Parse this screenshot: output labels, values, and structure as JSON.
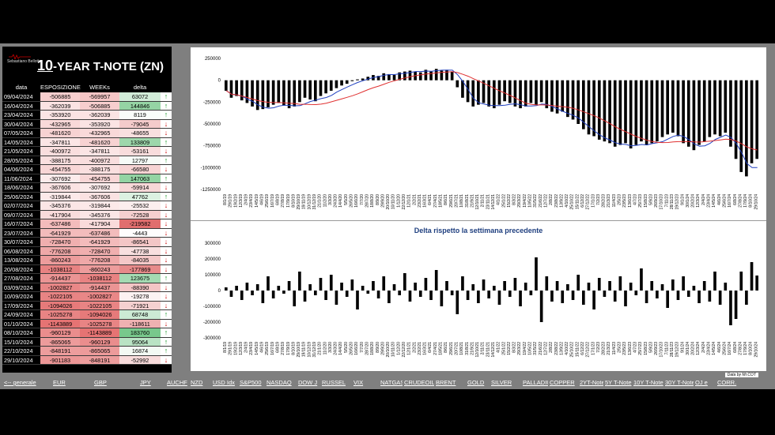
{
  "title": {
    "prefix": "10",
    "rest": "-YEAR T-NOTE (ZN)"
  },
  "logo_text": "Sebastiano Bellotto",
  "table": {
    "headers": [
      "data",
      "ESPOSIZIONE LS",
      "WEEKs",
      "delta"
    ],
    "rows": [
      [
        "09/04/2024",
        "-506885",
        "-569957",
        "63072",
        "up"
      ],
      [
        "16/04/2024",
        "-362039",
        "-506885",
        "144846",
        "up"
      ],
      [
        "23/04/2024",
        "-353920",
        "-362039",
        "8119",
        "up"
      ],
      [
        "30/04/2024",
        "-432965",
        "-353920",
        "-79045",
        "down"
      ],
      [
        "07/05/2024",
        "-481620",
        "-432965",
        "-48655",
        "down"
      ],
      [
        "14/05/2024",
        "-347811",
        "-481620",
        "133809",
        "up"
      ],
      [
        "21/05/2024",
        "-400972",
        "-347811",
        "-53161",
        "down"
      ],
      [
        "28/05/2024",
        "-388175",
        "-400972",
        "12797",
        "up"
      ],
      [
        "04/06/2024",
        "-454755",
        "-388175",
        "-66580",
        "down"
      ],
      [
        "11/06/2024",
        "-307692",
        "-454755",
        "147063",
        "up"
      ],
      [
        "18/06/2024",
        "-367606",
        "-307692",
        "-59914",
        "down"
      ],
      [
        "25/06/2024",
        "-319844",
        "-367606",
        "47762",
        "up"
      ],
      [
        "02/07/2024",
        "-345376",
        "-319844",
        "-25532",
        "down"
      ],
      [
        "09/07/2024",
        "-417904",
        "-345376",
        "-72528",
        "down"
      ],
      [
        "16/07/2024",
        "-637486",
        "-417904",
        "-219582",
        "down"
      ],
      [
        "23/07/2024",
        "-641929",
        "-637486",
        "-4443",
        "down"
      ],
      [
        "30/07/2024",
        "-728470",
        "-641929",
        "-86541",
        "down"
      ],
      [
        "06/08/2024",
        "-776208",
        "-728470",
        "-47738",
        "down"
      ],
      [
        "13/08/2024",
        "-860243",
        "-776208",
        "-84035",
        "down"
      ],
      [
        "20/08/2024",
        "-1038112",
        "-860243",
        "-177869",
        "down"
      ],
      [
        "27/08/2024",
        "-914437",
        "-1038112",
        "123675",
        "up"
      ],
      [
        "03/09/2024",
        "-1002827",
        "-914437",
        "-88390",
        "down"
      ],
      [
        "10/09/2024",
        "-1022105",
        "-1002827",
        "-19278",
        "down"
      ],
      [
        "17/09/2024",
        "-1094026",
        "-1022105",
        "-71921",
        "down"
      ],
      [
        "24/09/2024",
        "-1025278",
        "-1094026",
        "68748",
        "up"
      ],
      [
        "01/10/2024",
        "-1143889",
        "-1025278",
        "-118611",
        "down"
      ],
      [
        "08/10/2024",
        "-960129",
        "-1143889",
        "183760",
        "up"
      ],
      [
        "15/10/2024",
        "-865065",
        "-960129",
        "95064",
        "up"
      ],
      [
        "22/10/2024",
        "-848191",
        "-865065",
        "16874",
        "up"
      ],
      [
        "29/10/2024",
        "-901183",
        "-848191",
        "-52992",
        "down"
      ]
    ]
  },
  "colors": {
    "bar": "#000000",
    "line_fast": "#1f3fbf",
    "line_slow": "#e03030",
    "pos_delta": "#8fd19e",
    "neg_delta": "#e57373"
  },
  "chart_data": [
    {
      "type": "bar",
      "title": "",
      "yticks": [
        "250000",
        "0",
        "-250000",
        "-500000",
        "-750000",
        "-1000000",
        "-1250000"
      ],
      "ylim": [
        -1250000,
        250000
      ],
      "xticks": [
        "8/1/19",
        "29/1/19",
        "19/2/19",
        "12/3/19",
        "2/4/19",
        "23/4/19",
        "14/5/19",
        "4/6/19",
        "25/6/19",
        "16/7/19",
        "6/8/19",
        "27/8/19",
        "17/9/19",
        "8/10/19",
        "29/10/19",
        "19/11/19",
        "10/12/19",
        "31/12/19",
        "21/1/20",
        "11/2/20",
        "3/3/20",
        "24/3/20",
        "14/4/20",
        "5/5/20",
        "26/5/20",
        "16/6/20",
        "7/7/20",
        "28/7/20",
        "18/8/20",
        "8/9/20",
        "29/9/20",
        "20/10/20",
        "10/11/20",
        "1/12/20",
        "22/12/20",
        "12/1/21",
        "2/2/21",
        "23/2/21",
        "16/3/21",
        "6/4/21",
        "27/4/21",
        "18/5/21",
        "8/6/21",
        "29/6/21",
        "20/7/21",
        "10/8/21",
        "31/8/21",
        "21/9/21",
        "12/10/21",
        "2/11/21",
        "23/11/21",
        "14/12/21",
        "4/1/22",
        "25/1/22",
        "15/2/22",
        "8/3/22",
        "29/3/22",
        "19/4/22",
        "10/5/22",
        "31/5/22",
        "21/6/22",
        "12/7/22",
        "2/8/22",
        "23/8/22",
        "13/9/22",
        "4/10/22",
        "25/10/22",
        "15/11/22",
        "6/12/22",
        "27/12/22",
        "17/1/23",
        "7/2/23",
        "28/2/23",
        "21/3/23",
        "11/4/23",
        "2/5/23",
        "23/5/23",
        "13/6/23",
        "4/7/23",
        "25/7/23",
        "15/8/23",
        "5/9/23",
        "26/9/23",
        "17/10/23",
        "7/11/23",
        "28/11/23",
        "19/12/23",
        "9/1/24",
        "30/1/24",
        "20/2/24",
        "12/3/24",
        "2/4/24",
        "23/4/24",
        "14/5/24",
        "4/6/24",
        "25/6/24",
        "16/7/24",
        "6/8/24",
        "27/8/24",
        "17/9/24",
        "8/10/24",
        "29/10/24"
      ],
      "series": [
        {
          "type": "bar",
          "values": [
            -120000,
            -200000,
            -180000,
            -230000,
            -260000,
            -300000,
            -340000,
            -330000,
            -310000,
            -280000,
            -260000,
            -290000,
            -320000,
            -300000,
            -250000,
            -200000,
            -220000,
            -240000,
            -180000,
            -150000,
            -120000,
            -90000,
            -60000,
            -40000,
            -10000,
            10000,
            20000,
            40000,
            60000,
            50000,
            80000,
            70000,
            60000,
            90000,
            100000,
            110000,
            100000,
            90000,
            120000,
            100000,
            130000,
            110000,
            120000,
            100000,
            -80000,
            -200000,
            -250000,
            -300000,
            -280000,
            -260000,
            -300000,
            -320000,
            -280000,
            -240000,
            -260000,
            -300000,
            -320000,
            -300000,
            -260000,
            -280000,
            -250000,
            -320000,
            -360000,
            -380000,
            -360000,
            -420000,
            -450000,
            -500000,
            -560000,
            -620000,
            -640000,
            -680000,
            -700000,
            -720000,
            -760000,
            -740000,
            -720000,
            -780000,
            -740000,
            -700000,
            -740000,
            -720000,
            -700000,
            -650000,
            -620000,
            -600000,
            -640000,
            -720000,
            -760000,
            -800000,
            -740000,
            -700000,
            -650000,
            -620000,
            -640000,
            -600000,
            -760000,
            -900000,
            -1050000,
            -1100000,
            -950000,
            -900000
          ]
        }
      ]
    },
    {
      "type": "bar",
      "title": "Delta rispetto la settimana precedente",
      "yticks": [
        "300000",
        "200000",
        "100000",
        "0",
        "-100000",
        "-200000",
        "-300000"
      ],
      "ylim": [
        -300000,
        300000
      ],
      "series": [
        {
          "type": "bar",
          "values": [
            20000,
            -40000,
            30000,
            -60000,
            50000,
            -30000,
            40000,
            -80000,
            90000,
            -50000,
            30000,
            -20000,
            60000,
            -100000,
            120000,
            -70000,
            40000,
            -30000,
            80000,
            -60000,
            100000,
            -90000,
            50000,
            -40000,
            70000,
            -120000,
            30000,
            -20000,
            60000,
            -50000,
            90000,
            -80000,
            40000,
            -30000,
            110000,
            -70000,
            50000,
            -40000,
            80000,
            -60000,
            130000,
            -100000,
            60000,
            -30000,
            -150000,
            90000,
            -60000,
            40000,
            -80000,
            70000,
            -50000,
            30000,
            -90000,
            60000,
            -40000,
            80000,
            -100000,
            50000,
            -30000,
            210000,
            -200000,
            90000,
            -70000,
            60000,
            -80000,
            40000,
            -60000,
            100000,
            -90000,
            50000,
            -120000,
            80000,
            -40000,
            60000,
            -70000,
            90000,
            -100000,
            50000,
            -30000,
            140000,
            -80000,
            60000,
            -50000,
            40000,
            -110000,
            70000,
            -60000,
            90000,
            -40000,
            30000,
            -80000,
            60000,
            -70000,
            120000,
            -90000,
            50000,
            -220000,
            -180000,
            120000,
            -90000,
            180000,
            95000
          ]
        }
      ]
    }
  ],
  "credit": "Data by Mr.COT",
  "nav": [
    "<-- generale",
    "EUR",
    "GBP",
    "JPY",
    "AUCHF",
    "NZD",
    "USD Idx",
    "S&P500",
    "NASDAQ",
    "DOW J",
    "RUSSEL",
    "VIX",
    "NATGAS",
    "CRUDEOIL",
    "BRENT",
    "GOLD",
    "SILVER",
    "PALLADIUM",
    "COPPER",
    "2YT-Note",
    "5Y T-Note",
    "10Y T-Note",
    "30Y T-Note",
    "OJ e",
    "CORR."
  ]
}
